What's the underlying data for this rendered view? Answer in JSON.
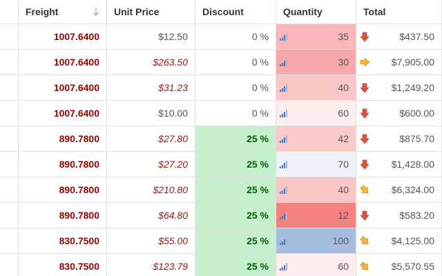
{
  "table": {
    "columns": [
      "Freight",
      "Unit Price",
      "Discount",
      "Quantity",
      "Total"
    ],
    "rows": [
      {
        "freight": "1007.6400",
        "unit_price": "$12.50",
        "discount": "0 %",
        "quantity": 35,
        "total": "$437.50"
      },
      {
        "freight": "1007.6400",
        "unit_price": "$263.50",
        "discount": "0 %",
        "quantity": 30,
        "total": "$7,905.00"
      },
      {
        "freight": "1007.6400",
        "unit_price": "$31.23",
        "discount": "0 %",
        "quantity": 40,
        "total": "$1,249.20"
      },
      {
        "freight": "1007.6400",
        "unit_price": "$10.00",
        "discount": "0 %",
        "quantity": 60,
        "total": "$600.00"
      },
      {
        "freight": "890.7800",
        "unit_price": "$27.80",
        "discount": "25 %",
        "quantity": 42,
        "total": "$875.70"
      },
      {
        "freight": "890.7800",
        "unit_price": "$27.20",
        "discount": "25 %",
        "quantity": 70,
        "total": "$1,428.00"
      },
      {
        "freight": "890.7800",
        "unit_price": "$210.80",
        "discount": "25 %",
        "quantity": 40,
        "total": "$6,324.00"
      },
      {
        "freight": "890.7800",
        "unit_price": "$64.80",
        "discount": "25 %",
        "quantity": 12,
        "total": "$583.20"
      },
      {
        "freight": "830.7500",
        "unit_price": "$55.00",
        "discount": "25 %",
        "quantity": 100,
        "total": "$4,125.00"
      },
      {
        "freight": "830.7500",
        "unit_price": "$123.79",
        "discount": "25 %",
        "quantity": 60,
        "total": "$5,570.55"
      }
    ]
  }
}
